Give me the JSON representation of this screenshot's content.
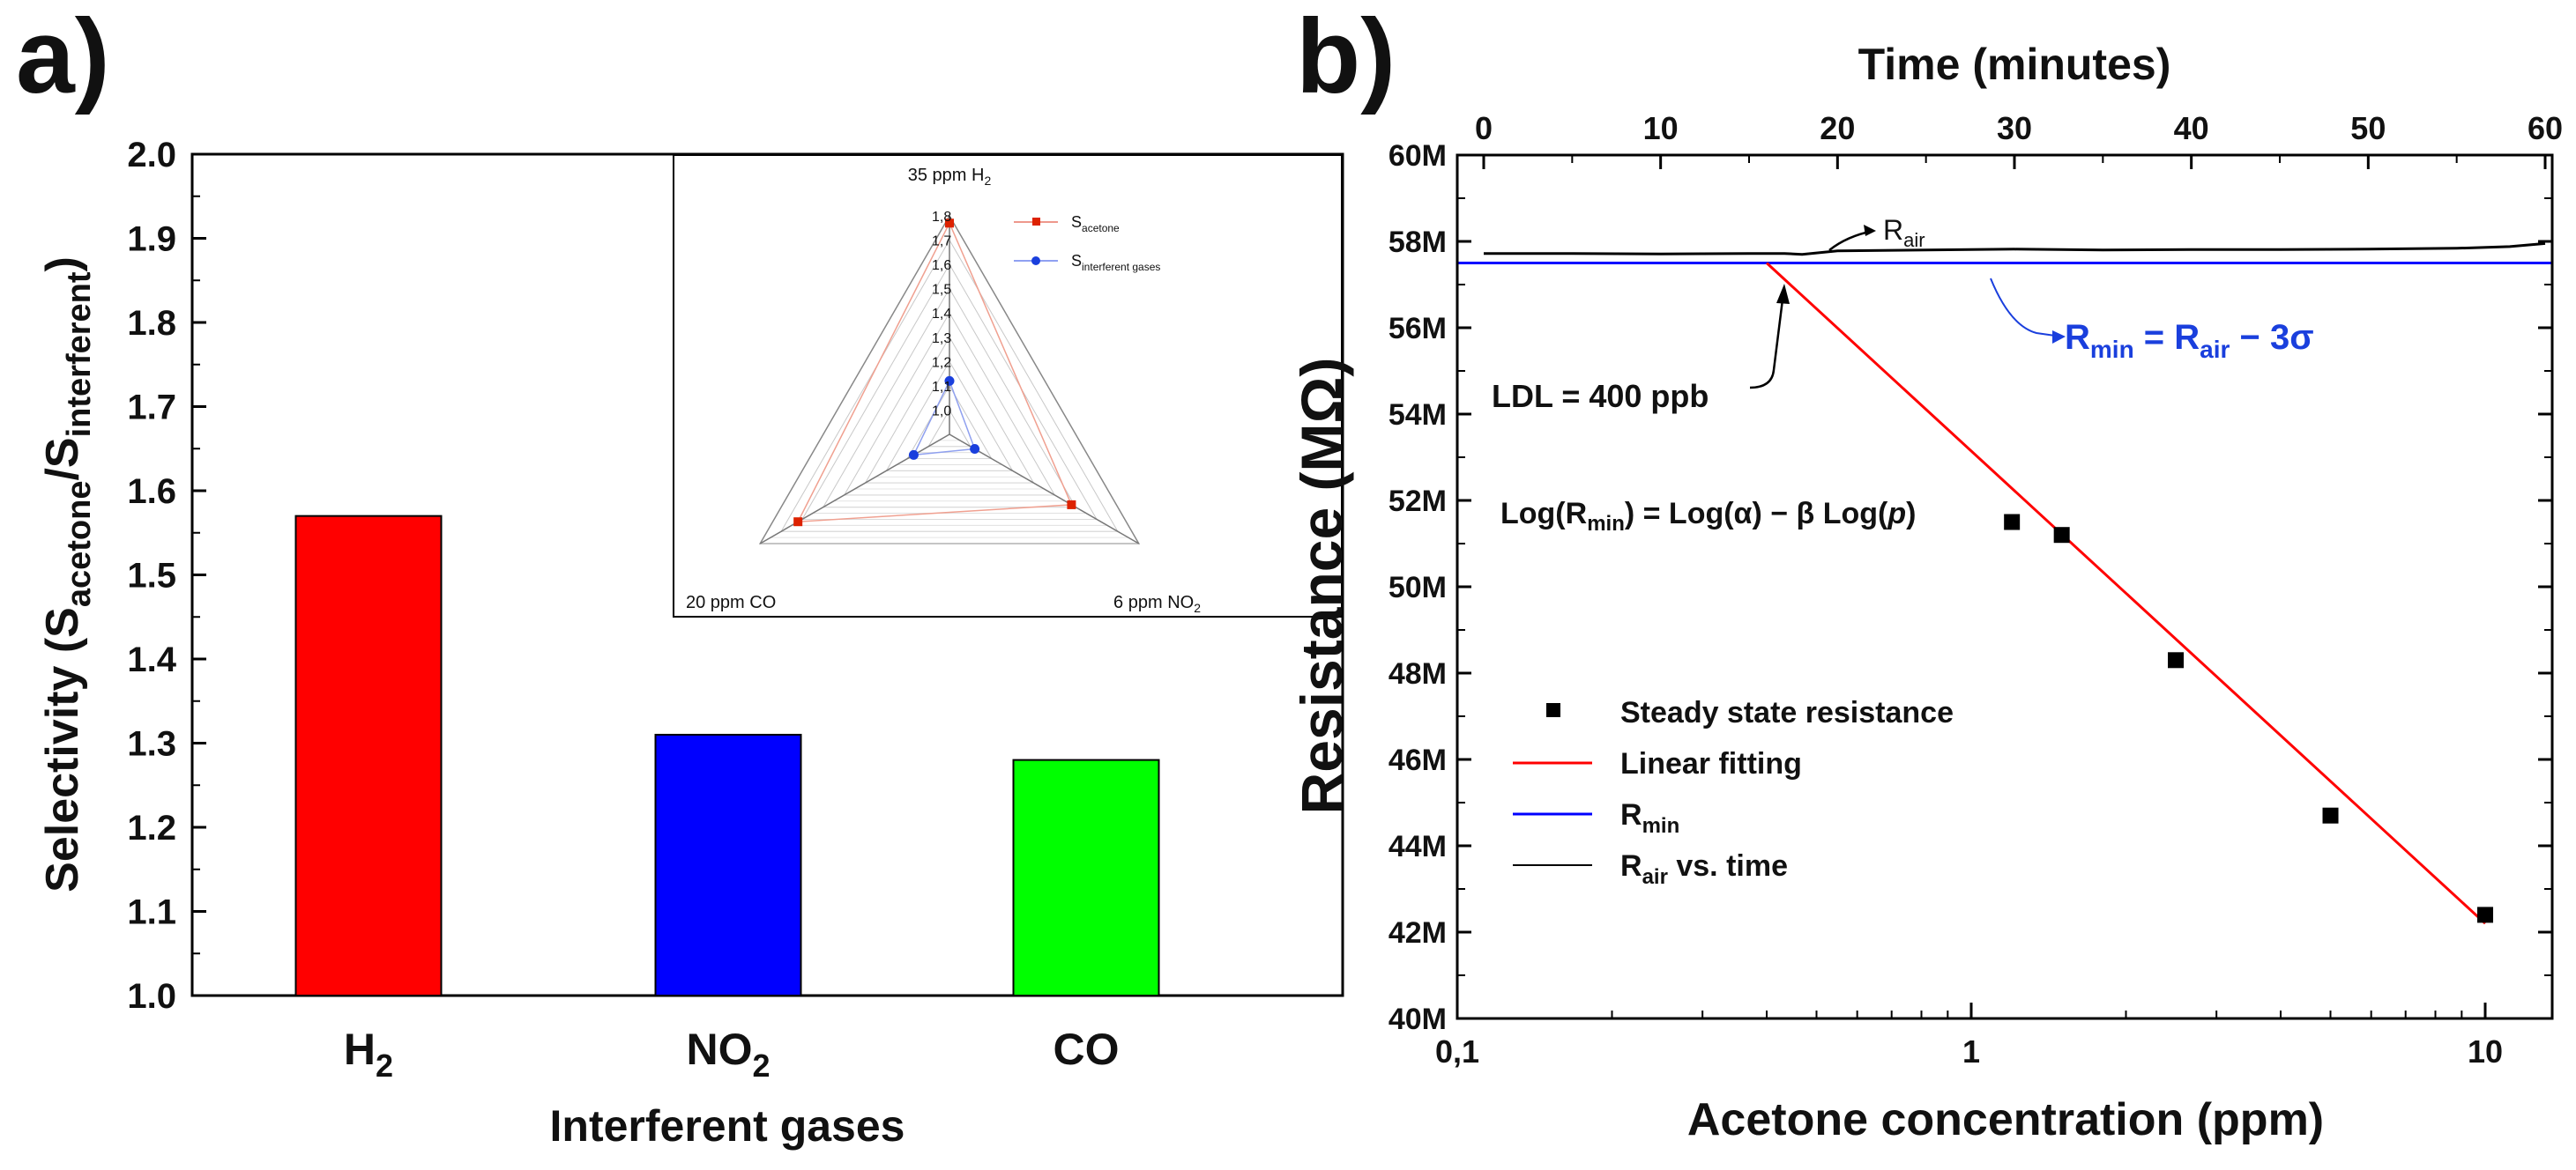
{
  "chart_data": [
    {
      "panel": "a)",
      "type": "bar",
      "categories": [
        "H",
        "NO",
        "CO"
      ],
      "category_subscripts": [
        "2",
        "2",
        ""
      ],
      "values": [
        1.57,
        1.31,
        1.28
      ],
      "colors": [
        "#ff0000",
        "#0000ff",
        "#00ff00"
      ],
      "ylim": [
        1.0,
        2.0
      ],
      "yticks": [
        "1.0",
        "1.1",
        "1.2",
        "1.3",
        "1.4",
        "1.5",
        "1.6",
        "1.7",
        "1.8",
        "1.9",
        "2.0"
      ],
      "ylabel": {
        "pre": "Selectivity (S",
        "sub1": "acetone",
        "mid": "/S",
        "sub2": "interferent",
        "post": ")"
      },
      "xlabel": "Interferent gases",
      "inset": {
        "type": "radar",
        "axes": [
          {
            "label": "35 ppm H",
            "sub": "2"
          },
          {
            "label": "6 ppm NO",
            "sub": "2"
          },
          {
            "label": "20 ppm CO",
            "sub": ""
          }
        ],
        "rlim": [
          0.9,
          1.8
        ],
        "rticks": [
          "1,0",
          "1,1",
          "1,2",
          "1,3",
          "1,4",
          "1,5",
          "1,6",
          "1,7",
          "1,8"
        ],
        "series": [
          {
            "name": "S",
            "sub": "acetone",
            "values": [
              1.77,
              1.48,
              1.62
            ],
            "color": "#dd2200",
            "marker": "square"
          },
          {
            "name": "S",
            "sub": "interferent gases",
            "values": [
              1.12,
              1.02,
              1.07
            ],
            "color": "#1a3fdd",
            "marker": "circle"
          }
        ]
      }
    },
    {
      "panel": "b)",
      "type": "scatter",
      "xscale": "log",
      "xlabel": "Acetone concentration (ppm)",
      "xticks": [
        {
          "v": 0.1,
          "label": "0,1"
        },
        {
          "v": 1,
          "label": "1"
        },
        {
          "v": 10,
          "label": "10"
        }
      ],
      "xlim": [
        0.1,
        13.5
      ],
      "ylabel": "Resistance (MΩ)",
      "ylim": [
        40,
        60
      ],
      "yticks": [
        "40M",
        "42M",
        "44M",
        "46M",
        "48M",
        "50M",
        "52M",
        "54M",
        "56M",
        "58M",
        "60M"
      ],
      "top_axis": {
        "label": "Time (minutes)",
        "range": [
          0,
          60
        ],
        "ticks": [
          "0",
          "10",
          "20",
          "30",
          "40",
          "50",
          "60"
        ]
      },
      "series": [
        {
          "name": "Steady state resistance",
          "kind": "points",
          "x": [
            1.2,
            1.5,
            2.5,
            5.0,
            10.0
          ],
          "y": [
            51.5,
            51.2,
            48.3,
            44.7,
            42.4
          ],
          "color": "#000000"
        },
        {
          "name": "Linear fitting",
          "kind": "line",
          "x": [
            0.4,
            10.0
          ],
          "y": [
            57.5,
            42.2
          ],
          "color": "#ff0000"
        },
        {
          "name": "R",
          "sub": "min",
          "kind": "hline",
          "y": 57.5,
          "color": "#0000ff"
        },
        {
          "name": "R",
          "sub": "air",
          "post": " vs. time",
          "kind": "time-series",
          "t": [
            0,
            5,
            10,
            15,
            17,
            18,
            20,
            25,
            30,
            35,
            40,
            45,
            50,
            55,
            58,
            60
          ],
          "y": [
            57.72,
            57.72,
            57.71,
            57.72,
            57.72,
            57.7,
            57.78,
            57.8,
            57.82,
            57.8,
            57.81,
            57.81,
            57.82,
            57.84,
            57.88,
            57.95
          ],
          "color": "#000000"
        }
      ],
      "annotations": {
        "rair": {
          "text": "R",
          "sub": "air"
        },
        "rmin": {
          "text": "R",
          "sub1": "min",
          "mid": " = R",
          "sub2": "air",
          "post": " − 3σ"
        },
        "ldl": "LDL = 400 ppb",
        "equation": {
          "pre": "Log(R",
          "sub": "min",
          "mid": ") = Log(α) − β Log(",
          "italic": "p",
          "post": ")"
        }
      }
    }
  ]
}
